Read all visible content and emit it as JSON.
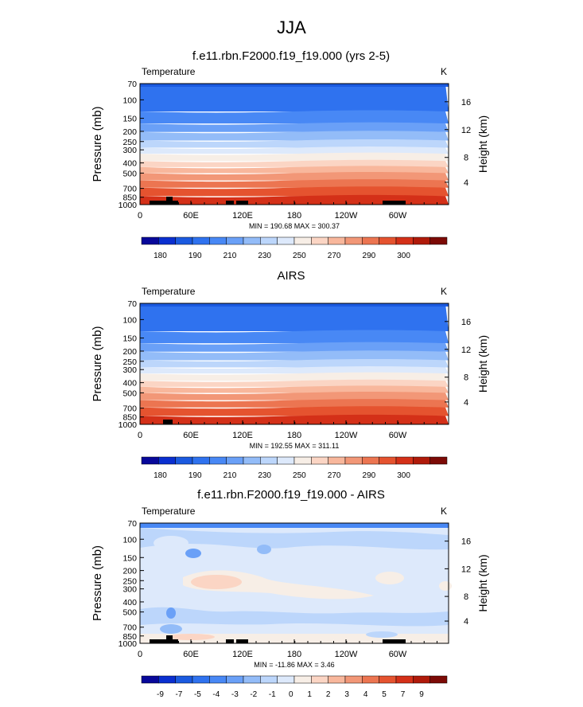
{
  "page_title": "JJA",
  "palettes": {
    "abs": [
      "#08089a",
      "#0a2fd0",
      "#1b5ae0",
      "#2f72ef",
      "#4888f5",
      "#6aa0f7",
      "#93bcf8",
      "#bcd6fb",
      "#dde9fb",
      "#f7eee6",
      "#fbd5c4",
      "#f8b79c",
      "#f29777",
      "#ec7551",
      "#e5532f",
      "#d43018",
      "#b01a0a",
      "#7c0a06"
    ],
    "diff": [
      "#08089a",
      "#0a2fd0",
      "#1b5ae0",
      "#2f72ef",
      "#4888f5",
      "#6aa0f7",
      "#93bcf8",
      "#bcd6fb",
      "#dde9fb",
      "#f7eee6",
      "#fbd5c4",
      "#f8b79c",
      "#f29777",
      "#ec7551",
      "#e5532f",
      "#d43018",
      "#b01a0a",
      "#7c0a06"
    ]
  },
  "chart_data": [
    {
      "type": "heatmap",
      "title": "f.e11.rbn.F2000.f19_f19.000 (yrs 2-5)",
      "left_label": "Temperature",
      "right_label": "K",
      "ylabel": "Pressure (mb)",
      "ylabel_right": "Height (km)",
      "xticks": [
        "0",
        "60E",
        "120E",
        "180",
        "120W",
        "60W"
      ],
      "yticks": [
        "70",
        "100",
        "150",
        "200",
        "250",
        "300",
        "400",
        "500",
        "700",
        "850",
        "1000"
      ],
      "height_ticks": [
        "16",
        "12",
        "8",
        "4"
      ],
      "min_max": "MIN = 190.68  MAX = 300.37",
      "colorbar_labels": [
        "180",
        "190",
        "210",
        "230",
        "250",
        "270",
        "290",
        "300"
      ],
      "palette": "abs",
      "grid": false
    },
    {
      "type": "heatmap",
      "title": "AIRS",
      "left_label": "Temperature",
      "right_label": "K",
      "ylabel": "Pressure (mb)",
      "ylabel_right": "Height (km)",
      "xticks": [
        "0",
        "60E",
        "120E",
        "180",
        "120W",
        "60W"
      ],
      "yticks": [
        "70",
        "100",
        "150",
        "200",
        "250",
        "300",
        "400",
        "500",
        "700",
        "850",
        "1000"
      ],
      "height_ticks": [
        "16",
        "12",
        "8",
        "4"
      ],
      "min_max": "MIN = 192.55  MAX = 311.11",
      "colorbar_labels": [
        "180",
        "190",
        "210",
        "230",
        "250",
        "270",
        "290",
        "300"
      ],
      "palette": "abs",
      "grid": false
    },
    {
      "type": "heatmap",
      "title": "f.e11.rbn.F2000.f19_f19.000 - AIRS",
      "left_label": "Temperature",
      "right_label": "K",
      "ylabel": "Pressure (mb)",
      "ylabel_right": "Height (km)",
      "xticks": [
        "0",
        "60E",
        "120E",
        "180",
        "120W",
        "60W"
      ],
      "yticks": [
        "70",
        "100",
        "150",
        "200",
        "250",
        "300",
        "400",
        "500",
        "700",
        "850",
        "1000"
      ],
      "height_ticks": [
        "16",
        "12",
        "8",
        "4"
      ],
      "min_max": "MIN = -11.86  MAX =  3.46",
      "colorbar_labels": [
        "-9",
        "-7",
        "-5",
        "-4",
        "-3",
        "-2",
        "-1",
        "0",
        "1",
        "2",
        "3",
        "4",
        "5",
        "7",
        "9"
      ],
      "palette": "diff",
      "grid": false
    }
  ]
}
